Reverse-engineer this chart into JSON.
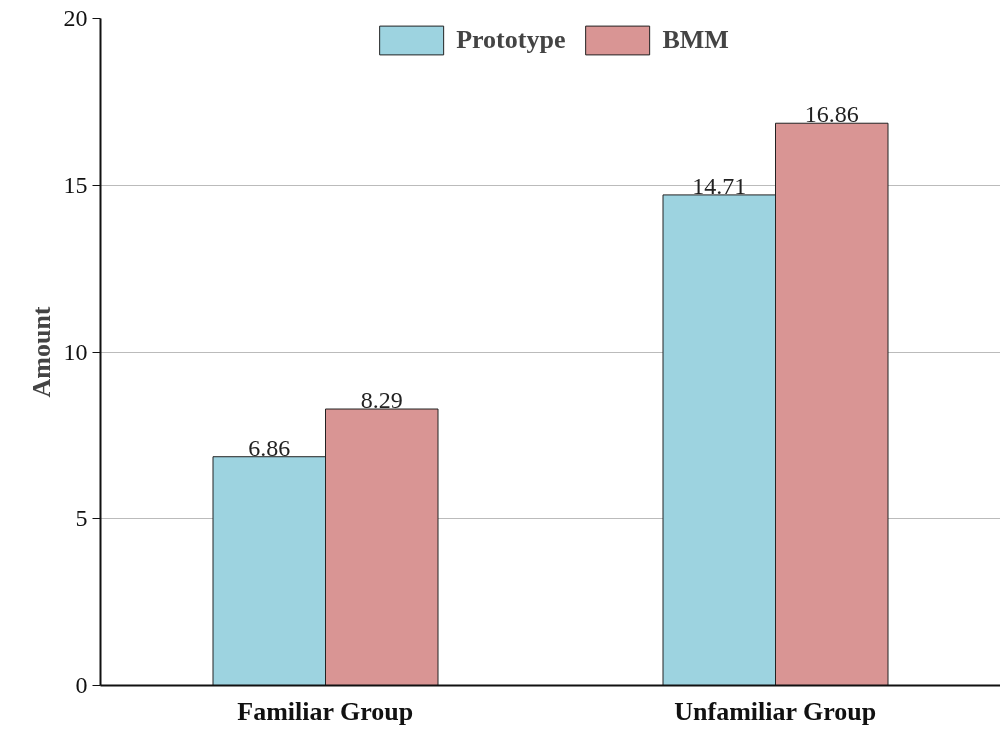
{
  "chart_data": {
    "type": "bar",
    "ylabel": "Amount",
    "categories": [
      "Familiar Group",
      "Unfamiliar Group"
    ],
    "series": [
      {
        "name": "Prototype",
        "color": "#9dd3e0",
        "values": [
          6.86,
          14.71
        ]
      },
      {
        "name": "BMM",
        "color": "#d99594",
        "values": [
          8.29,
          16.86
        ]
      }
    ],
    "ylim": [
      0,
      20
    ],
    "yticks": [
      0,
      5,
      10,
      15,
      20
    ],
    "grid": "y",
    "legend": "top",
    "data_labels": true
  }
}
